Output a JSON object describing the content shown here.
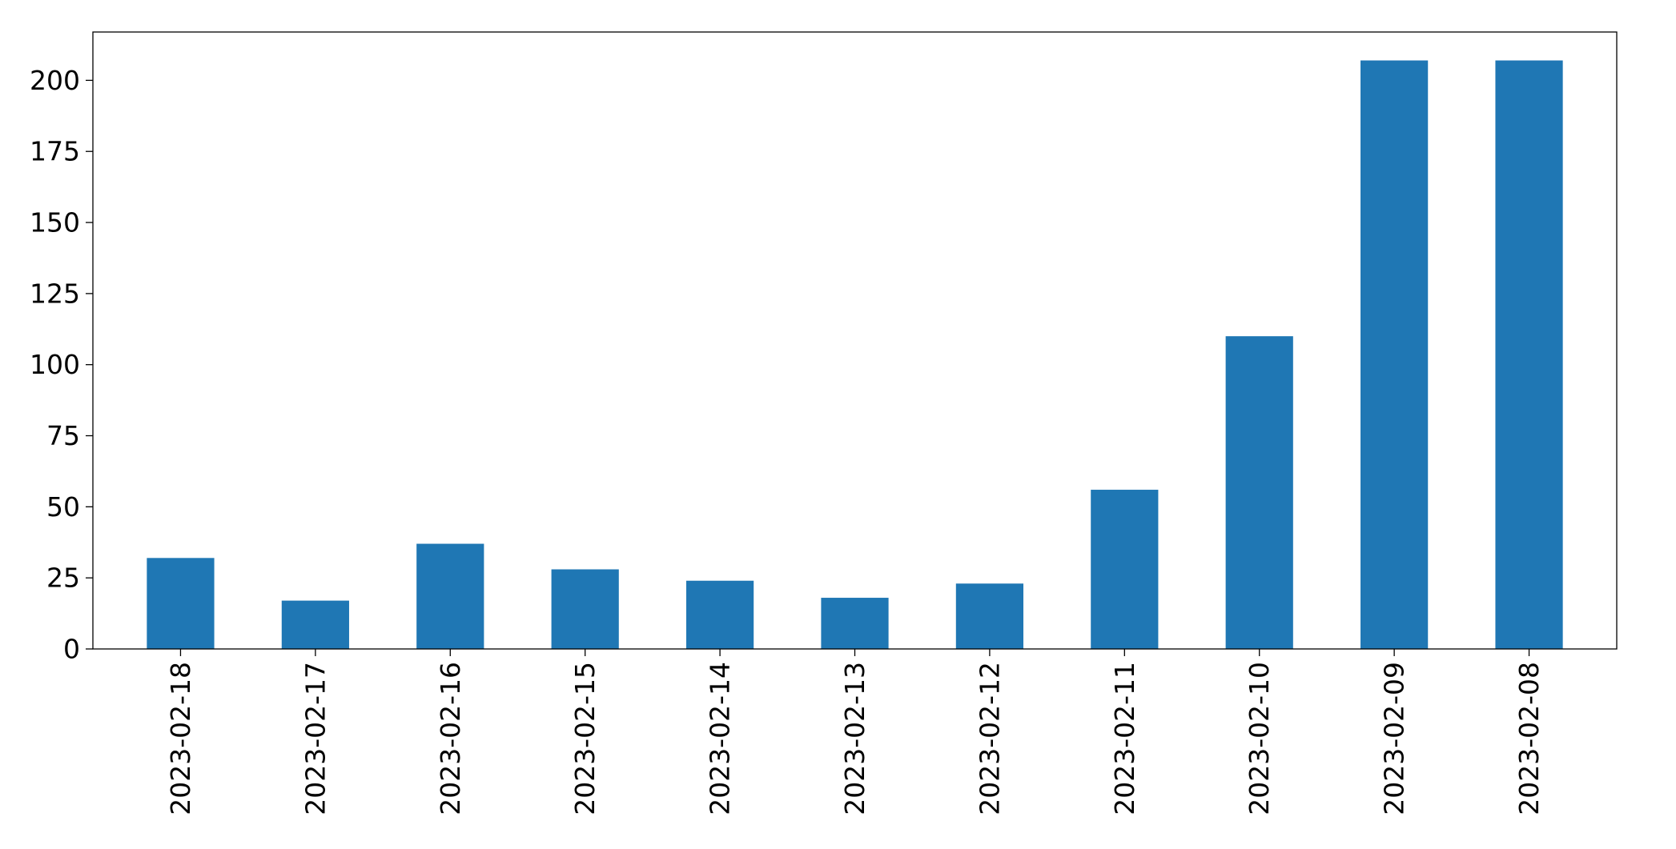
{
  "chart_data": {
    "type": "bar",
    "title": "",
    "xlabel": "",
    "ylabel": "",
    "categories": [
      "2023-02-18",
      "2023-02-17",
      "2023-02-16",
      "2023-02-15",
      "2023-02-14",
      "2023-02-13",
      "2023-02-12",
      "2023-02-11",
      "2023-02-10",
      "2023-02-09",
      "2023-02-08"
    ],
    "values": [
      32,
      17,
      37,
      28,
      24,
      18,
      23,
      56,
      110,
      207,
      207
    ],
    "ylim": [
      0,
      217
    ],
    "yticks": [
      "0",
      "25",
      "50",
      "75",
      "100",
      "125",
      "150",
      "175",
      "200"
    ],
    "bar_color": "#1f77b4",
    "grid": false,
    "legend": "none"
  }
}
